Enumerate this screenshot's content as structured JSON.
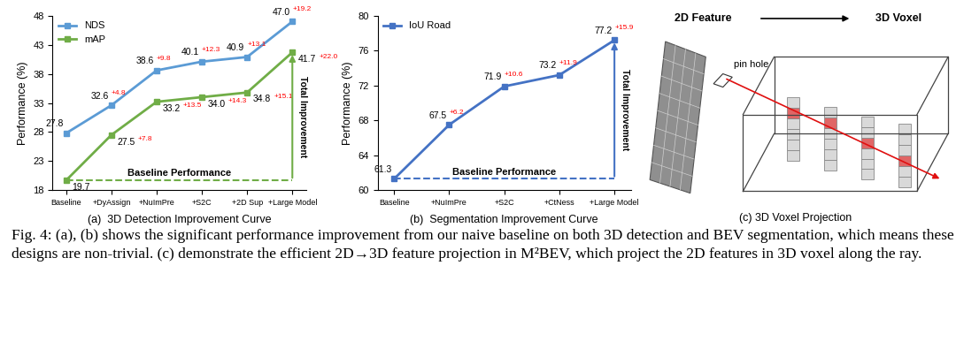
{
  "chart_data": [
    {
      "type": "line",
      "title": "(a)  3D Detection Improvement Curve",
      "y_label": "Performance (%)",
      "categories": [
        "Baseline",
        "+DyAssign",
        "+NuImPre",
        "+S2C",
        "+2D Sup",
        "+Large Model"
      ],
      "series": [
        {
          "name": "NDS",
          "color": "#5b9bd5",
          "marker": "square",
          "values": [
            27.8,
            32.6,
            38.6,
            40.1,
            40.9,
            47.0
          ],
          "improvement_labels": [
            null,
            "+4.8",
            "+9.8",
            "+12.3",
            "+13.1",
            "+19.2"
          ]
        },
        {
          "name": "mAP",
          "color": "#70ad47",
          "marker": "square",
          "values": [
            19.7,
            27.5,
            33.2,
            34.0,
            34.8,
            41.7
          ],
          "improvement_labels": [
            null,
            "+7.8",
            "+13.5",
            "+14.3",
            "+15.1",
            "+22.0"
          ]
        }
      ],
      "ylim": [
        18,
        48
      ],
      "yticks": [
        18,
        23,
        28,
        33,
        38,
        43,
        48
      ],
      "legend": "upper left",
      "data_labels": true,
      "grid": false,
      "annotations": {
        "baseline": "Baseline Performance",
        "total": "Total Improvement"
      }
    },
    {
      "type": "line",
      "title": "(b)  Segmentation Improvement Curve",
      "y_label": "Performance (%)",
      "categories": [
        "Baseline",
        "+NuImPre",
        "+S2C",
        "+CtNess",
        "+Large Model"
      ],
      "series": [
        {
          "name": "IoU Road",
          "color": "#4472c4",
          "marker": "square",
          "values": [
            61.3,
            67.5,
            71.9,
            73.2,
            77.2
          ],
          "improvement_labels": [
            null,
            "+6.2",
            "+10.6",
            "+11.9",
            "+15.9"
          ]
        }
      ],
      "ylim": [
        60,
        80
      ],
      "yticks": [
        60,
        64,
        68,
        72,
        76,
        80
      ],
      "legend": "upper left",
      "data_labels": true,
      "grid": false,
      "annotations": {
        "baseline": "Baseline Performance",
        "total": "Total Improvement"
      }
    }
  ],
  "diagram": {
    "title": "(c) 3D Voxel Projection",
    "source_label": "2D Feature",
    "target_label": "3D Voxel",
    "pinhole_label": "pin hole"
  },
  "caption": "Fig. 4: (a), (b) shows the significant performance improvement from our naive baseline on both 3D detection and BEV segmentation, which means these designs are non-trivial. (c) demonstrate the efficient 2D→3D feature projection in M²BEV, which project the 2D features in 3D voxel along the ray."
}
